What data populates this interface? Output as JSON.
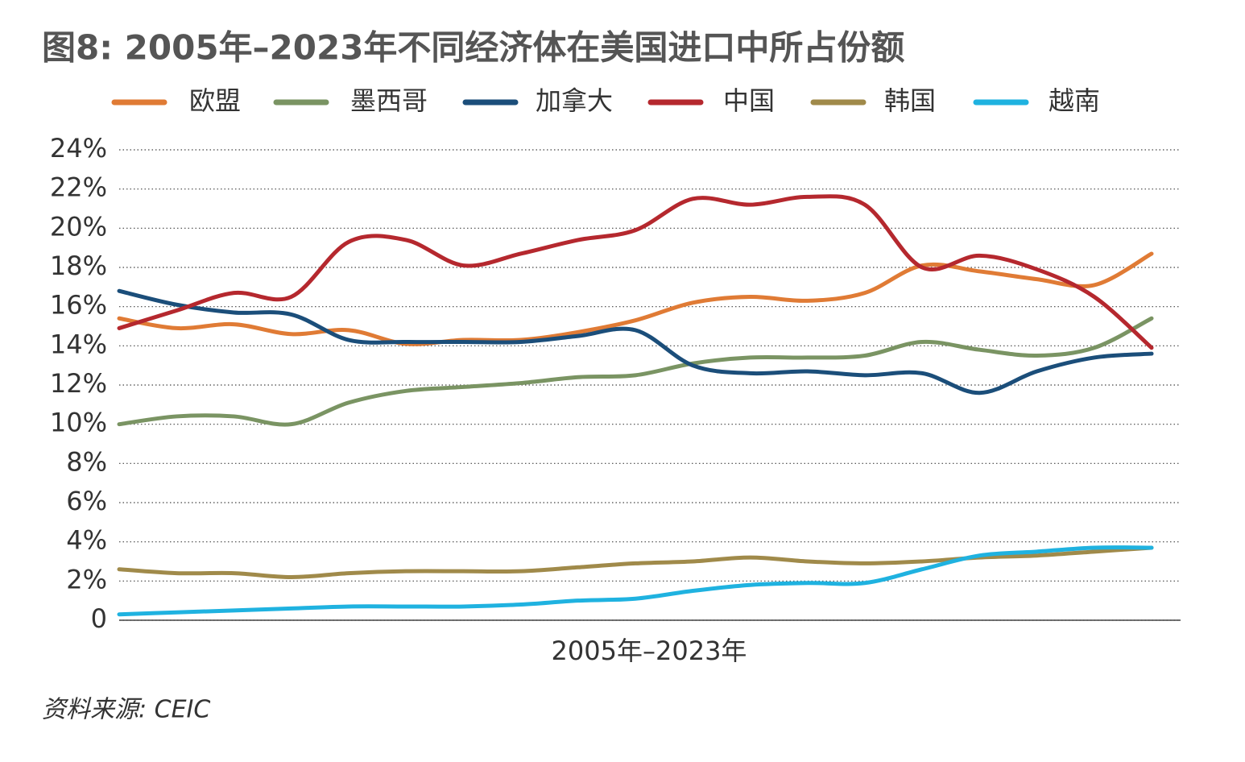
{
  "chart_data": {
    "type": "line",
    "title": "图8: 2005年–2023年不同经济体在美国进口中所占份额",
    "x_label": "2005年–2023年",
    "source": "资料来源: CEIC",
    "categories": [
      null,
      null,
      null,
      null,
      null,
      null,
      null,
      null,
      null,
      null,
      null,
      null,
      null,
      null,
      null,
      null,
      null,
      null,
      null
    ],
    "series": [
      {
        "name": "欧盟",
        "color": "#e07b35",
        "values": [
          15.4,
          14.9,
          15.1,
          14.6,
          14.8,
          14.1,
          14.3,
          14.3,
          14.7,
          15.3,
          16.2,
          16.5,
          16.3,
          16.7,
          18.1,
          17.8,
          17.4,
          17.1,
          18.7
        ]
      },
      {
        "name": "墨西哥",
        "color": "#7a9463",
        "values": [
          10.0,
          10.4,
          10.4,
          10.0,
          11.1,
          11.7,
          11.9,
          12.1,
          12.4,
          12.5,
          13.1,
          13.4,
          13.4,
          13.5,
          14.2,
          13.8,
          13.5,
          13.9,
          15.4
        ]
      },
      {
        "name": "加拿大",
        "color": "#1b4e7a",
        "values": [
          16.8,
          16.1,
          15.7,
          15.6,
          14.3,
          14.2,
          14.2,
          14.2,
          14.5,
          14.8,
          13.0,
          12.6,
          12.7,
          12.5,
          12.6,
          11.6,
          12.7,
          13.4,
          13.6
        ]
      },
      {
        "name": "中国",
        "color": "#b5282e",
        "values": [
          14.9,
          15.8,
          16.7,
          16.5,
          19.3,
          19.4,
          18.1,
          18.7,
          19.4,
          19.9,
          21.5,
          21.2,
          21.6,
          21.2,
          18.0,
          18.6,
          17.9,
          16.5,
          13.9
        ]
      },
      {
        "name": "韩国",
        "color": "#a08a4a",
        "values": [
          2.6,
          2.4,
          2.4,
          2.2,
          2.4,
          2.5,
          2.5,
          2.5,
          2.7,
          2.9,
          3.0,
          3.2,
          3.0,
          2.9,
          3.0,
          3.2,
          3.3,
          3.5,
          3.7
        ]
      },
      {
        "name": "越南",
        "color": "#1fb2e0",
        "values": [
          0.3,
          0.4,
          0.5,
          0.6,
          0.7,
          0.7,
          0.7,
          0.8,
          1.0,
          1.1,
          1.5,
          1.8,
          1.9,
          1.9,
          2.6,
          3.3,
          3.5,
          3.7,
          3.7
        ]
      }
    ],
    "ylim": [
      0,
      24
    ],
    "yticks": [
      0,
      {
        "value": 2,
        "label": "2%"
      },
      {
        "value": 4,
        "label": "4%"
      },
      {
        "value": 6,
        "label": "6%"
      },
      {
        "value": 8,
        "label": "8%"
      },
      {
        "value": 10,
        "label": "10%"
      },
      {
        "value": 12,
        "label": "12%"
      },
      {
        "value": 14,
        "label": "14%"
      },
      {
        "value": 16,
        "label": "16%"
      },
      {
        "value": 18,
        "label": "18%"
      },
      {
        "value": 20,
        "label": "20%"
      },
      {
        "value": 22,
        "label": "22%"
      },
      {
        "value": 24,
        "label": "24%"
      }
    ],
    "grid": true
  }
}
